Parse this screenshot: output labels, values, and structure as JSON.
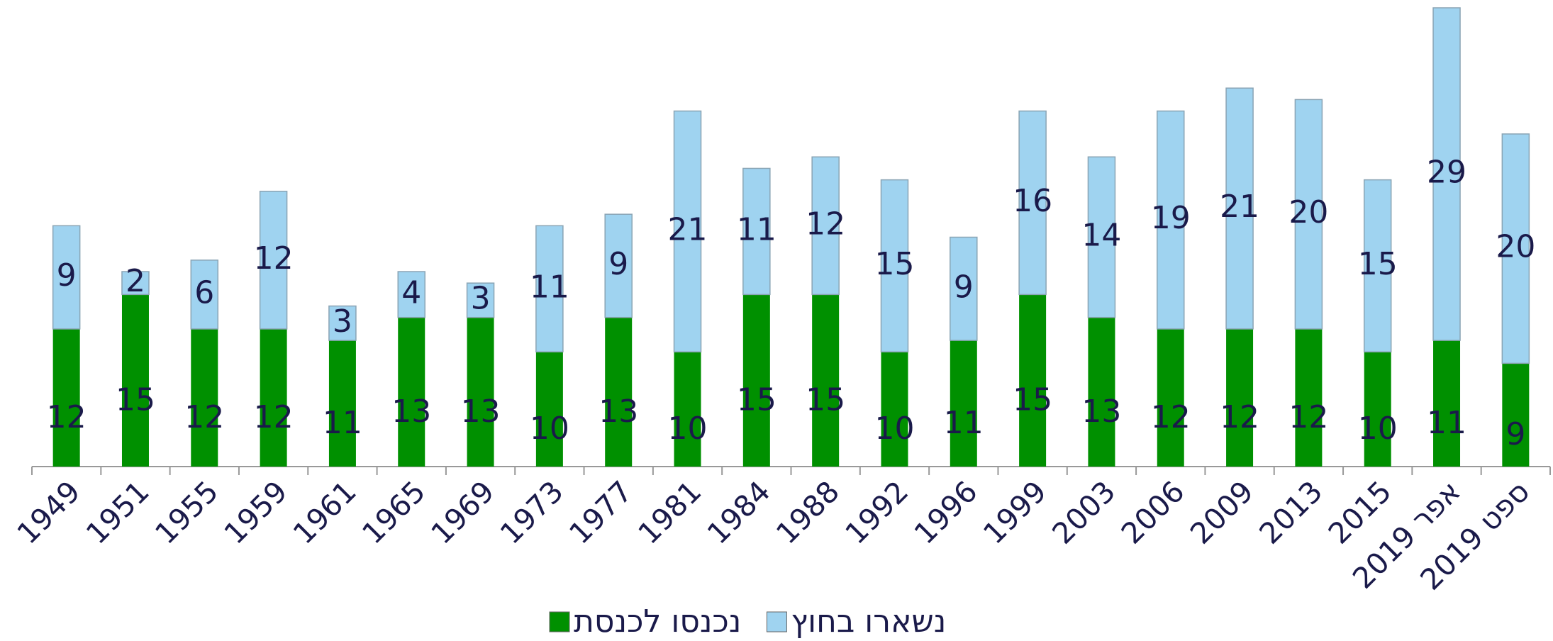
{
  "chart_data": {
    "type": "stacked_bar",
    "categories": [
      "1949",
      "1951",
      "1955",
      "1959",
      "1961",
      "1965",
      "1969",
      "1973",
      "1977",
      "1981",
      "1984",
      "1988",
      "1992",
      "1996",
      "1999",
      "2003",
      "2006",
      "2009",
      "2013",
      "2015",
      "אפר 2019",
      "ספט 2019"
    ],
    "series": [
      {
        "name": "נכנסו לכנסת",
        "color": "#009000",
        "values": [
          12,
          15,
          12,
          12,
          11,
          13,
          13,
          10,
          13,
          10,
          15,
          15,
          10,
          11,
          15,
          13,
          12,
          12,
          12,
          10,
          11,
          9
        ]
      },
      {
        "name": "נשארו בחוץ",
        "color": "#9fd3f0",
        "values": [
          9,
          2,
          6,
          12,
          3,
          4,
          3,
          11,
          9,
          21,
          11,
          12,
          15,
          9,
          16,
          14,
          19,
          21,
          20,
          15,
          29,
          20
        ]
      }
    ],
    "ylim": [
      0,
      40
    ]
  }
}
